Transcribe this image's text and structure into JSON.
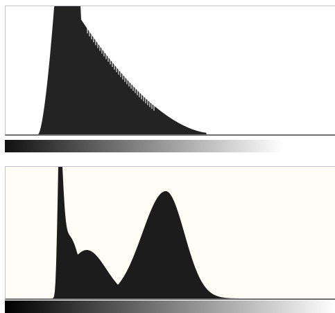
{
  "histograms": [
    {
      "id": "top",
      "background": "#ffffff",
      "fill": "#232323",
      "gradient": {
        "start": "#111111",
        "end": "#ffffff",
        "fade_stop": 0.84
      }
    },
    {
      "id": "bottom",
      "background": "#fffdf6",
      "fill": "#1c1c1c",
      "gradient": {
        "start": "#000000",
        "end": "#ffffff",
        "fade_stop": 1.0
      }
    }
  ]
}
